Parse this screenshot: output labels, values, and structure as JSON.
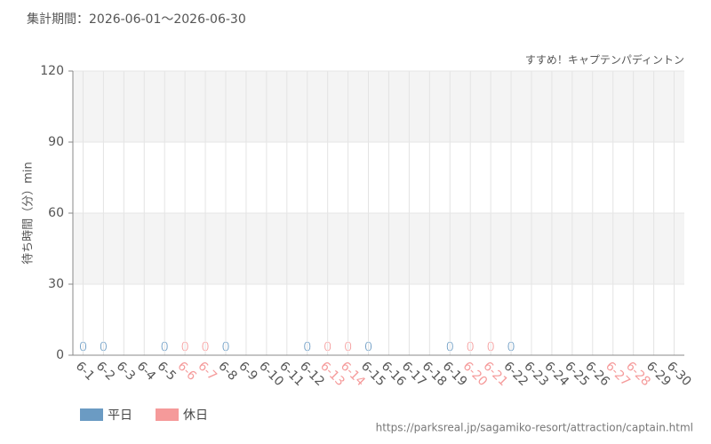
{
  "chart_data": {
    "type": "bar",
    "title": "集計期間：2026-06-01～2026-06-30",
    "subtitle": "すすめ！キャプテンパディントン",
    "y_label": "待ち時間（分）min",
    "source": "https://parksreal.jp/sagamiko-resort/attraction/captain.html",
    "categories": [
      "6-1",
      "6-2",
      "6-3",
      "6-4",
      "6-5",
      "6-6",
      "6-7",
      "6-8",
      "6-9",
      "6-10",
      "6-11",
      "6-12",
      "6-13",
      "6-14",
      "6-15",
      "6-16",
      "6-17",
      "6-18",
      "6-19",
      "6-20",
      "6-21",
      "6-22",
      "6-23",
      "6-24",
      "6-25",
      "6-26",
      "6-27",
      "6-28",
      "6-29",
      "6-30"
    ],
    "label_colors": [
      "#555555",
      "#555555",
      "#555555",
      "#555555",
      "#555555",
      "#f59a9a",
      "#f59a9a",
      "#555555",
      "#555555",
      "#555555",
      "#555555",
      "#555555",
      "#f59a9a",
      "#f59a9a",
      "#555555",
      "#555555",
      "#555555",
      "#555555",
      "#555555",
      "#f59a9a",
      "#f59a9a",
      "#555555",
      "#555555",
      "#555555",
      "#555555",
      "#555555",
      "#f59a9a",
      "#f59a9a",
      "#555555",
      "#555555"
    ],
    "series": [
      {
        "name": "平日",
        "color": "#6b9bc3",
        "values": [
          0,
          0,
          null,
          null,
          0,
          null,
          null,
          0,
          null,
          null,
          null,
          0,
          null,
          null,
          0,
          null,
          null,
          null,
          0,
          null,
          null,
          0,
          null,
          null,
          null,
          null,
          null,
          null,
          null,
          null
        ]
      },
      {
        "name": "休日",
        "color": "#f59a9a",
        "values": [
          null,
          null,
          null,
          null,
          null,
          0,
          0,
          null,
          null,
          null,
          null,
          null,
          0,
          0,
          null,
          null,
          null,
          null,
          null,
          0,
          0,
          null,
          null,
          null,
          null,
          null,
          null,
          null,
          null,
          null
        ]
      }
    ],
    "ylim": [
      0,
      120
    ],
    "yticks": [
      0,
      30,
      60,
      90,
      120
    ],
    "grid": true
  }
}
